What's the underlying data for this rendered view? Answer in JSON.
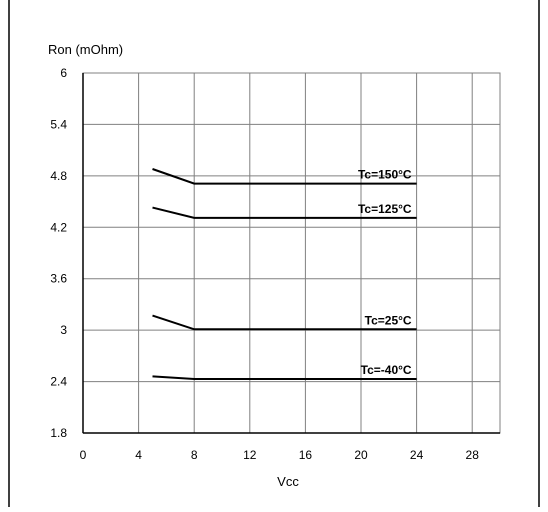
{
  "chart_data": {
    "type": "line",
    "title": "",
    "ylabel": "Ron (mOhm)",
    "xlabel": "Vcc",
    "xlim": [
      0,
      30
    ],
    "ylim": [
      1.8,
      6
    ],
    "xticks": [
      0,
      4,
      8,
      12,
      16,
      20,
      24,
      28
    ],
    "yticks": [
      1.8,
      2.4,
      3,
      3.6,
      4.2,
      4.8,
      5.4,
      6
    ],
    "ytick_labels": [
      "1.8",
      "2.4",
      "3",
      "3.6",
      "4.2",
      "4.8",
      "5.4",
      "6"
    ],
    "grid": true,
    "legend": "none",
    "series": [
      {
        "name": "Tc=150°C",
        "x": [
          5,
          8,
          24
        ],
        "y": [
          4.88,
          4.71,
          4.71
        ]
      },
      {
        "name": "Tc=125°C",
        "x": [
          5,
          8,
          24
        ],
        "y": [
          4.43,
          4.31,
          4.31
        ]
      },
      {
        "name": "Tc=25°C",
        "x": [
          5,
          8,
          24
        ],
        "y": [
          3.17,
          3.01,
          3.01
        ]
      },
      {
        "name": "Tc=-40°C",
        "x": [
          5,
          8,
          24
        ],
        "y": [
          2.46,
          2.43,
          2.43
        ]
      }
    ],
    "colors": {
      "line": "#000000",
      "grid": "#808080",
      "frame": "#000000"
    }
  }
}
